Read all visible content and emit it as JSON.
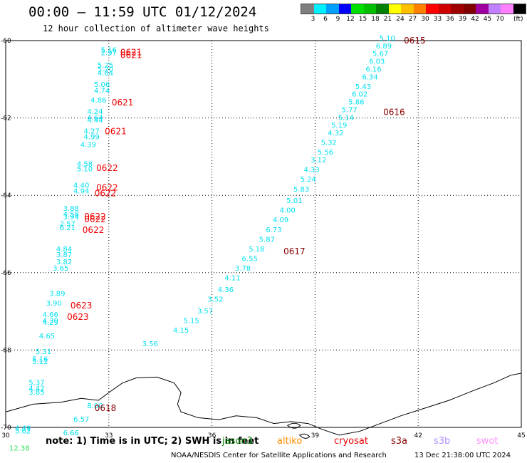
{
  "header": {
    "title": "00:00 – 11:59 UTC 01/12/2024",
    "subtitle": "12 hour collection of altimeter wave heights"
  },
  "legend": {
    "unit": "(ft)",
    "colors": [
      "#7f7f7f",
      "#00f0ff",
      "#00a0ff",
      "#0000ff",
      "#00e000",
      "#00c000",
      "#008000",
      "#ffff00",
      "#ffc000",
      "#ff8000",
      "#ff0000",
      "#d00000",
      "#a00000",
      "#800000",
      "#a000a0",
      "#c080ff",
      "#ff80ff",
      "#000000"
    ],
    "labels": [
      "3",
      "6",
      "9",
      "12",
      "15",
      "18",
      "21",
      "24",
      "27",
      "30",
      "33",
      "36",
      "39",
      "42",
      "45",
      "70"
    ]
  },
  "map": {
    "lon_ticks": [
      "30",
      "33",
      "36",
      "39",
      "42",
      "45"
    ],
    "lat_ticks": [
      "-60",
      "-62",
      "-64",
      "-66",
      "-68",
      "-70"
    ],
    "swh_points": [
      {
        "v": "5.16",
        "lon": 33.0,
        "lat": -60.3,
        "c": "#00e0f0"
      },
      {
        "v": "2.97",
        "lon": 33.0,
        "lat": -60.38,
        "c": "#00e0f0"
      },
      {
        "v": "5.25",
        "lon": 32.9,
        "lat": -60.7,
        "c": "#00e0f0"
      },
      {
        "v": "5.20",
        "lon": 32.9,
        "lat": -60.8,
        "c": "#00e0f0"
      },
      {
        "v": "4.64",
        "lon": 32.9,
        "lat": -60.9,
        "c": "#00e0f0"
      },
      {
        "v": "5.06",
        "lon": 32.8,
        "lat": -61.2,
        "c": "#00e0f0"
      },
      {
        "v": "4.74",
        "lon": 32.8,
        "lat": -61.35,
        "c": "#00e0f0"
      },
      {
        "v": "4.86",
        "lon": 32.7,
        "lat": -61.6,
        "c": "#00e0f0"
      },
      {
        "v": "4.24",
        "lon": 32.6,
        "lat": -61.9,
        "c": "#00e0f0"
      },
      {
        "v": "4.64",
        "lon": 32.6,
        "lat": -62.05,
        "c": "#00e0f0"
      },
      {
        "v": "4.44",
        "lon": 32.6,
        "lat": -62.12,
        "c": "#00e0f0"
      },
      {
        "v": "4.27",
        "lon": 32.5,
        "lat": -62.4,
        "c": "#00e0f0"
      },
      {
        "v": "4.99",
        "lon": 32.5,
        "lat": -62.55,
        "c": "#00e0f0"
      },
      {
        "v": "4.39",
        "lon": 32.4,
        "lat": -62.75,
        "c": "#00e0f0"
      },
      {
        "v": "4.58",
        "lon": 32.3,
        "lat": -63.25,
        "c": "#00e0f0"
      },
      {
        "v": "5.10",
        "lon": 32.3,
        "lat": -63.38,
        "c": "#00e0f0"
      },
      {
        "v": "4.40",
        "lon": 32.2,
        "lat": -63.8,
        "c": "#00e0f0"
      },
      {
        "v": "4.94",
        "lon": 32.2,
        "lat": -63.95,
        "c": "#00e0f0"
      },
      {
        "v": "3.88",
        "lon": 31.9,
        "lat": -64.4,
        "c": "#00e0f0"
      },
      {
        "v": "4.58",
        "lon": 31.9,
        "lat": -64.55,
        "c": "#00e0f0"
      },
      {
        "v": "3.94",
        "lon": 31.9,
        "lat": -64.62,
        "c": "#00e0f0"
      },
      {
        "v": "2.57",
        "lon": 31.8,
        "lat": -64.8,
        "c": "#00e0f0"
      },
      {
        "v": "6.21",
        "lon": 31.8,
        "lat": -64.9,
        "c": "#00e0f0"
      },
      {
        "v": "4.84",
        "lon": 31.7,
        "lat": -65.45,
        "c": "#00e0f0"
      },
      {
        "v": "3.87",
        "lon": 31.7,
        "lat": -65.6,
        "c": "#00e0f0"
      },
      {
        "v": "3.82",
        "lon": 31.7,
        "lat": -65.78,
        "c": "#00e0f0"
      },
      {
        "v": "3.65",
        "lon": 31.6,
        "lat": -65.95,
        "c": "#00e0f0"
      },
      {
        "v": "3.89",
        "lon": 31.5,
        "lat": -66.6,
        "c": "#00e0f0"
      },
      {
        "v": "3.90",
        "lon": 31.4,
        "lat": -66.85,
        "c": "#00e0f0"
      },
      {
        "v": "4.66",
        "lon": 31.3,
        "lat": -67.15,
        "c": "#00e0f0"
      },
      {
        "v": "4.30",
        "lon": 31.3,
        "lat": -67.3,
        "c": "#00e0f0"
      },
      {
        "v": "4.29",
        "lon": 31.3,
        "lat": -67.35,
        "c": "#00e0f0"
      },
      {
        "v": "4.65",
        "lon": 31.2,
        "lat": -67.7,
        "c": "#00e0f0"
      },
      {
        "v": "5.31",
        "lon": 31.1,
        "lat": -68.1,
        "c": "#00e0f0"
      },
      {
        "v": "5.16",
        "lon": 31.0,
        "lat": -68.3,
        "c": "#00e0f0"
      },
      {
        "v": "5.12",
        "lon": 31.0,
        "lat": -68.36,
        "c": "#00e0f0"
      },
      {
        "v": "5.37",
        "lon": 30.9,
        "lat": -68.9,
        "c": "#00e0f0"
      },
      {
        "v": "4.42",
        "lon": 30.9,
        "lat": -69.05,
        "c": "#00e0f0"
      },
      {
        "v": "3.85",
        "lon": 30.9,
        "lat": -69.15,
        "c": "#00e0f0"
      },
      {
        "v": "4.49",
        "lon": 30.5,
        "lat": -70.08,
        "c": "#00e0f0"
      },
      {
        "v": "5.62",
        "lon": 30.5,
        "lat": -70.16,
        "c": "#00e0f0"
      },
      {
        "v": "12.38",
        "lon": 30.4,
        "lat": -70.6,
        "c": "#40e060"
      },
      {
        "v": "8.00",
        "lon": 32.6,
        "lat": -69.5,
        "c": "#00e0f0"
      },
      {
        "v": "6.57",
        "lon": 32.2,
        "lat": -69.85,
        "c": "#00e0f0"
      },
      {
        "v": "6.66",
        "lon": 31.9,
        "lat": -70.2,
        "c": "#00e0f0"
      },
      {
        "v": "3.56",
        "lon": 34.2,
        "lat": -67.9,
        "c": "#00e0f0"
      },
      {
        "v": "5.10",
        "lon": 41.1,
        "lat": -60.0,
        "c": "#00e0f0"
      },
      {
        "v": "6.89",
        "lon": 41.0,
        "lat": -60.2,
        "c": "#00e0f0"
      },
      {
        "v": "5.67",
        "lon": 40.9,
        "lat": -60.4,
        "c": "#00e0f0"
      },
      {
        "v": "6.03",
        "lon": 40.8,
        "lat": -60.6,
        "c": "#00e0f0"
      },
      {
        "v": "6.16",
        "lon": 40.7,
        "lat": -60.8,
        "c": "#00e0f0"
      },
      {
        "v": "6.34",
        "lon": 40.6,
        "lat": -61.0,
        "c": "#00e0f0"
      },
      {
        "v": "5.43",
        "lon": 40.4,
        "lat": -61.25,
        "c": "#00e0f0"
      },
      {
        "v": "6.02",
        "lon": 40.3,
        "lat": -61.45,
        "c": "#00e0f0"
      },
      {
        "v": "5.86",
        "lon": 40.2,
        "lat": -61.65,
        "c": "#00e0f0"
      },
      {
        "v": "5.77",
        "lon": 40.0,
        "lat": -61.85,
        "c": "#00e0f0"
      },
      {
        "v": "5.14",
        "lon": 39.9,
        "lat": -62.05,
        "c": "#00e0f0"
      },
      {
        "v": "5.19",
        "lon": 39.7,
        "lat": -62.25,
        "c": "#00e0f0"
      },
      {
        "v": "4.32",
        "lon": 39.6,
        "lat": -62.45,
        "c": "#00e0f0"
      },
      {
        "v": "5.32",
        "lon": 39.4,
        "lat": -62.7,
        "c": "#00e0f0"
      },
      {
        "v": "5.56",
        "lon": 39.3,
        "lat": -62.95,
        "c": "#00e0f0"
      },
      {
        "v": "3.12",
        "lon": 39.1,
        "lat": -63.15,
        "c": "#00e0f0"
      },
      {
        "v": "4.33",
        "lon": 38.9,
        "lat": -63.4,
        "c": "#00e0f0"
      },
      {
        "v": "5.24",
        "lon": 38.8,
        "lat": -63.65,
        "c": "#00e0f0"
      },
      {
        "v": "5.83",
        "lon": 38.6,
        "lat": -63.9,
        "c": "#00e0f0"
      },
      {
        "v": "5.01",
        "lon": 38.4,
        "lat": -64.2,
        "c": "#00e0f0"
      },
      {
        "v": "4.00",
        "lon": 38.2,
        "lat": -64.45,
        "c": "#00e0f0"
      },
      {
        "v": "4.09",
        "lon": 38.0,
        "lat": -64.7,
        "c": "#00e0f0"
      },
      {
        "v": "6.73",
        "lon": 37.8,
        "lat": -64.95,
        "c": "#00e0f0"
      },
      {
        "v": "5.87",
        "lon": 37.6,
        "lat": -65.2,
        "c": "#00e0f0"
      },
      {
        "v": "5.18",
        "lon": 37.3,
        "lat": -65.45,
        "c": "#00e0f0"
      },
      {
        "v": "6.55",
        "lon": 37.1,
        "lat": -65.7,
        "c": "#00e0f0"
      },
      {
        "v": "3.78",
        "lon": 36.9,
        "lat": -65.95,
        "c": "#00e0f0"
      },
      {
        "v": "4.11",
        "lon": 36.6,
        "lat": -66.2,
        "c": "#00e0f0"
      },
      {
        "v": "4.36",
        "lon": 36.4,
        "lat": -66.5,
        "c": "#00e0f0"
      },
      {
        "v": "3.52",
        "lon": 36.1,
        "lat": -66.75,
        "c": "#00e0f0"
      },
      {
        "v": "3.57",
        "lon": 35.8,
        "lat": -67.05,
        "c": "#00e0f0"
      },
      {
        "v": "5.15",
        "lon": 35.4,
        "lat": -67.3,
        "c": "#00e0f0"
      },
      {
        "v": "4.15",
        "lon": 35.1,
        "lat": -67.55,
        "c": "#00e0f0"
      }
    ],
    "time_labels": [
      {
        "t": "0621",
        "lon": 33.65,
        "lat": -60.3,
        "c": "#ee0000"
      },
      {
        "t": "0621",
        "lon": 33.65,
        "lat": -60.38,
        "c": "#ee0000"
      },
      {
        "t": "0621",
        "lon": 33.4,
        "lat": -61.6,
        "c": "#ee0000"
      },
      {
        "t": "0621",
        "lon": 33.2,
        "lat": -62.35,
        "c": "#ee0000"
      },
      {
        "t": "0622",
        "lon": 32.95,
        "lat": -63.3,
        "c": "#ee0000"
      },
      {
        "t": "0622",
        "lon": 32.95,
        "lat": -63.8,
        "c": "#ee0000"
      },
      {
        "t": "0622",
        "lon": 32.9,
        "lat": -63.95,
        "c": "#ee0000"
      },
      {
        "t": "0622",
        "lon": 32.6,
        "lat": -64.55,
        "c": "#ee0000"
      },
      {
        "t": "0622",
        "lon": 32.6,
        "lat": -64.62,
        "c": "#ee0000"
      },
      {
        "t": "0622",
        "lon": 32.55,
        "lat": -64.9,
        "c": "#ee0000"
      },
      {
        "t": "0623",
        "lon": 32.2,
        "lat": -66.85,
        "c": "#ee0000"
      },
      {
        "t": "0623",
        "lon": 32.1,
        "lat": -67.15,
        "c": "#ee0000"
      },
      {
        "t": "0618",
        "lon": 32.9,
        "lat": -69.5,
        "c": "#880000"
      },
      {
        "t": "0615",
        "lon": 41.9,
        "lat": -60.0,
        "c": "#880000"
      },
      {
        "t": "0616",
        "lon": 41.3,
        "lat": -61.85,
        "c": "#880000"
      },
      {
        "t": "0617",
        "lon": 38.4,
        "lat": -65.45,
        "c": "#880000"
      }
    ]
  },
  "footer": {
    "note": "note:  1) Time is in UTC;  2) SWH is in feet",
    "satellites": [
      {
        "name": "jason3",
        "color": "#008000"
      },
      {
        "name": "altiko",
        "color": "#ff8c00"
      },
      {
        "name": "cryosat",
        "color": "#ee0000"
      },
      {
        "name": "s3a",
        "color": "#880000"
      },
      {
        "name": "s3b",
        "color": "#b090ff"
      },
      {
        "name": "swot",
        "color": "#ff90ff"
      }
    ],
    "credit": "NOAA/NESDIS Center for Satellite Applications and Research",
    "timestamp": "13 Dec 21:38:00 UTC 2024"
  }
}
